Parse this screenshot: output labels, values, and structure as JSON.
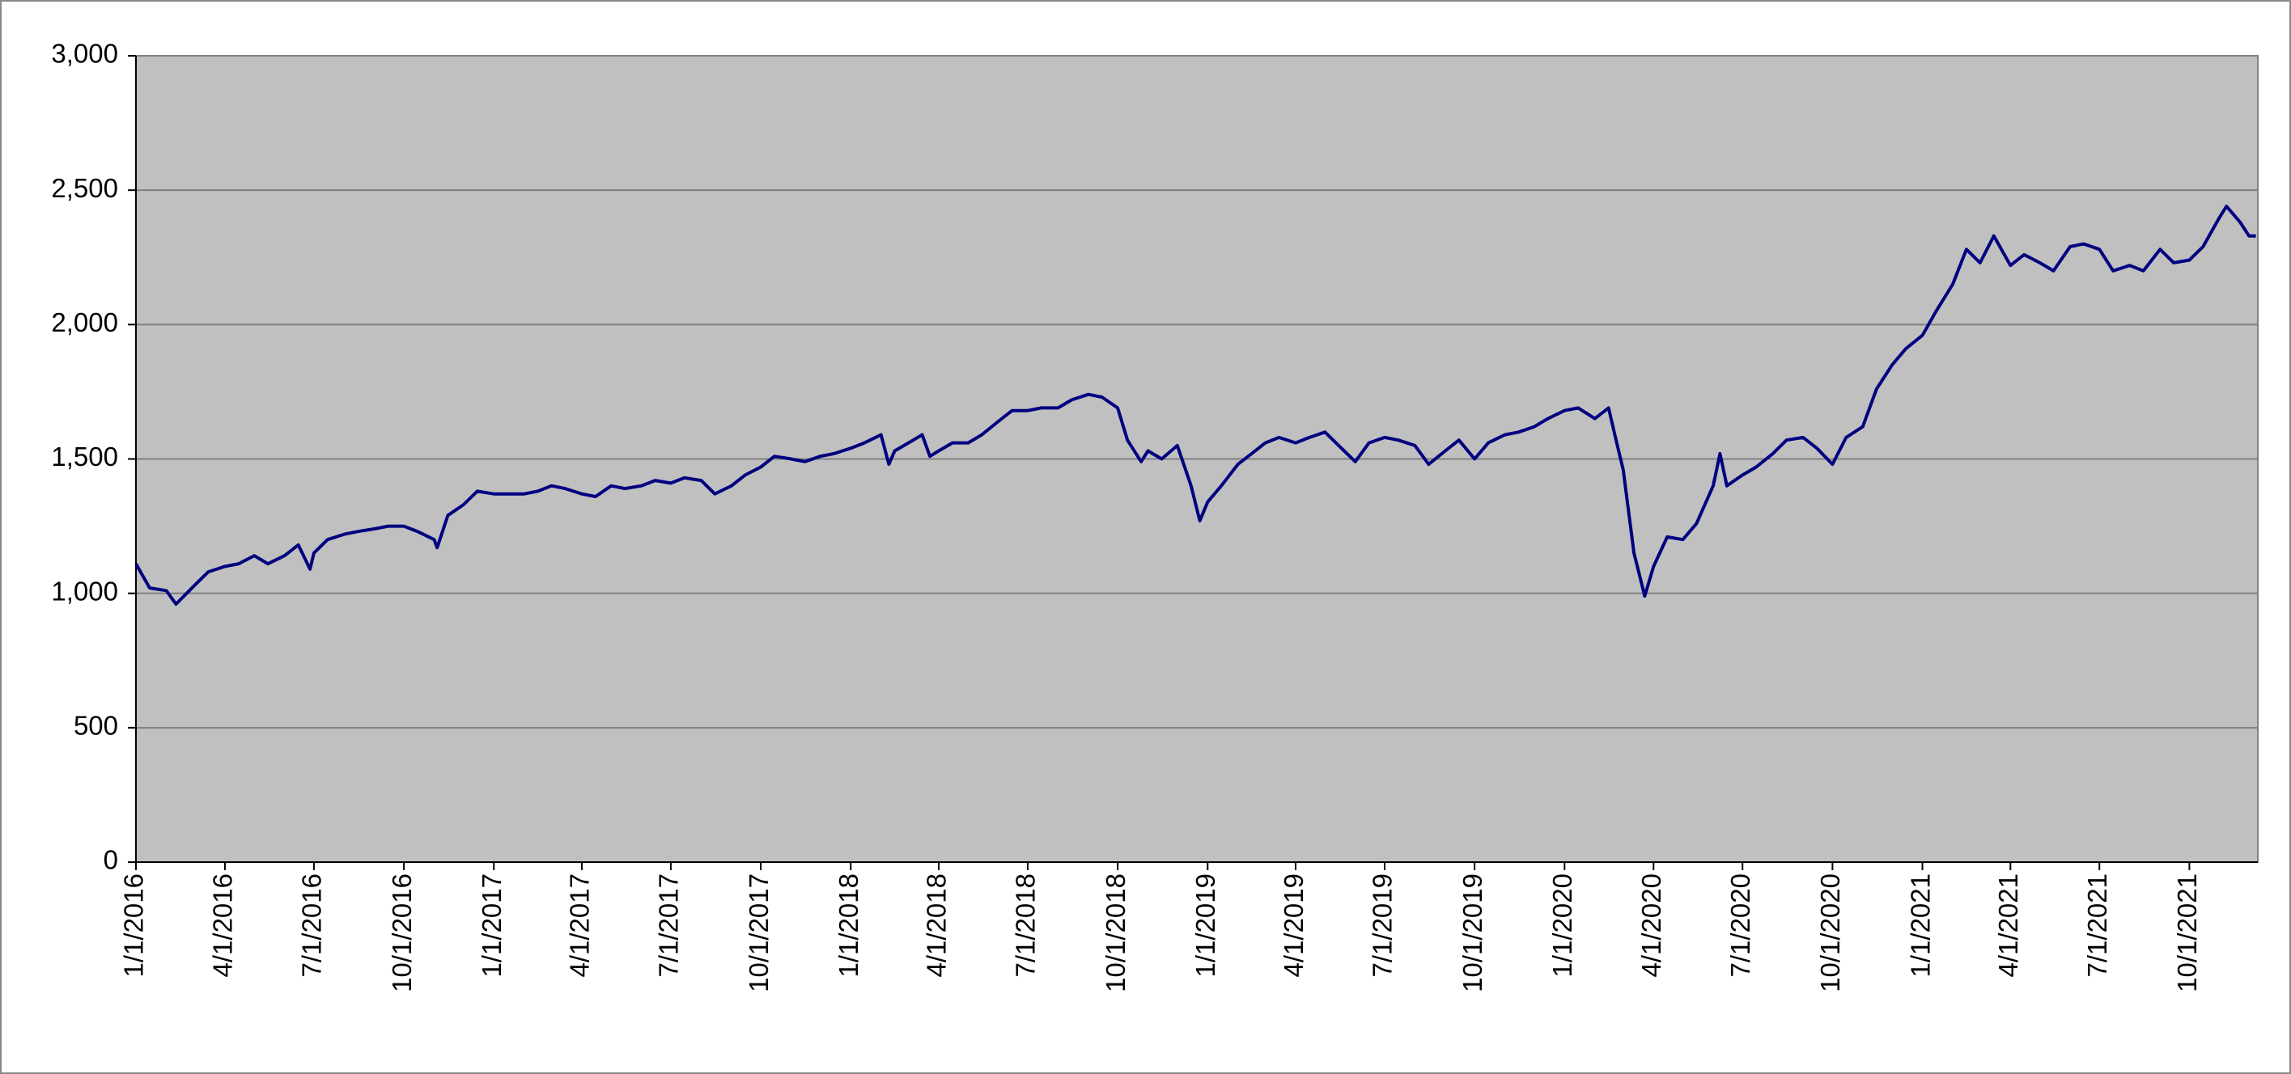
{
  "chart_data": {
    "type": "line",
    "x": [
      "1/1/2016",
      "1/15/2016",
      "2/1/2016",
      "2/11/2016",
      "3/1/2016",
      "3/15/2016",
      "4/1/2016",
      "4/15/2016",
      "5/1/2016",
      "5/15/2016",
      "6/1/2016",
      "6/15/2016",
      "6/27/2016",
      "7/1/2016",
      "7/15/2016",
      "8/1/2016",
      "8/15/2016",
      "9/1/2016",
      "9/15/2016",
      "10/1/2016",
      "10/15/2016",
      "11/1/2016",
      "11/4/2016",
      "11/15/2016",
      "12/1/2016",
      "12/15/2016",
      "1/1/2017",
      "1/15/2017",
      "2/1/2017",
      "2/15/2017",
      "3/1/2017",
      "3/15/2017",
      "4/1/2017",
      "4/15/2017",
      "5/1/2017",
      "5/15/2017",
      "6/1/2017",
      "6/15/2017",
      "7/1/2017",
      "7/15/2017",
      "8/1/2017",
      "8/15/2017",
      "9/1/2017",
      "9/15/2017",
      "10/1/2017",
      "10/15/2017",
      "11/1/2017",
      "11/15/2017",
      "12/1/2017",
      "12/15/2017",
      "1/1/2018",
      "1/15/2018",
      "2/1/2018",
      "2/9/2018",
      "2/15/2018",
      "3/1/2018",
      "3/15/2018",
      "3/23/2018",
      "4/1/2018",
      "4/15/2018",
      "5/1/2018",
      "5/15/2018",
      "6/1/2018",
      "6/15/2018",
      "7/1/2018",
      "7/15/2018",
      "8/1/2018",
      "8/15/2018",
      "9/1/2018",
      "9/15/2018",
      "10/1/2018",
      "10/11/2018",
      "10/25/2018",
      "11/1/2018",
      "11/15/2018",
      "12/1/2018",
      "12/15/2018",
      "12/24/2018",
      "1/1/2019",
      "1/15/2019",
      "2/1/2019",
      "2/15/2019",
      "3/1/2019",
      "3/15/2019",
      "4/1/2019",
      "4/15/2019",
      "5/1/2019",
      "5/15/2019",
      "6/1/2019",
      "6/15/2019",
      "7/1/2019",
      "7/15/2019",
      "8/1/2019",
      "8/15/2019",
      "9/1/2019",
      "9/15/2019",
      "10/1/2019",
      "10/15/2019",
      "11/1/2019",
      "11/15/2019",
      "12/1/2019",
      "12/15/2019",
      "1/1/2020",
      "1/15/2020",
      "2/1/2020",
      "2/15/2020",
      "2/24/2020",
      "3/1/2020",
      "3/12/2020",
      "3/23/2020",
      "4/1/2020",
      "4/15/2020",
      "5/1/2020",
      "5/15/2020",
      "6/1/2020",
      "6/8/2020",
      "6/15/2020",
      "7/1/2020",
      "7/15/2020",
      "8/1/2020",
      "8/15/2020",
      "9/1/2020",
      "9/15/2020",
      "10/1/2020",
      "10/15/2020",
      "11/1/2020",
      "11/15/2020",
      "12/1/2020",
      "12/15/2020",
      "1/1/2021",
      "1/15/2021",
      "2/1/2021",
      "2/15/2021",
      "3/1/2021",
      "3/15/2021",
      "4/1/2021",
      "4/15/2021",
      "5/1/2021",
      "5/15/2021",
      "6/1/2021",
      "6/15/2021",
      "7/1/2021",
      "7/15/2021",
      "8/1/2021",
      "8/15/2021",
      "9/1/2021",
      "9/15/2021",
      "10/1/2021",
      "10/15/2021",
      "11/1/2021",
      "11/8/2021",
      "11/22/2021",
      "12/1/2021",
      "12/8/2021"
    ],
    "series": [
      {
        "color": "#000080",
        "values": [
          1110,
          1020,
          1010,
          960,
          1030,
          1080,
          1100,
          1110,
          1140,
          1110,
          1140,
          1180,
          1090,
          1150,
          1200,
          1220,
          1230,
          1240,
          1250,
          1250,
          1230,
          1200,
          1170,
          1290,
          1330,
          1380,
          1370,
          1370,
          1370,
          1380,
          1400,
          1390,
          1370,
          1360,
          1400,
          1390,
          1400,
          1420,
          1410,
          1430,
          1420,
          1370,
          1400,
          1440,
          1470,
          1510,
          1500,
          1490,
          1510,
          1520,
          1540,
          1560,
          1590,
          1480,
          1530,
          1560,
          1590,
          1510,
          1530,
          1560,
          1560,
          1590,
          1640,
          1680,
          1680,
          1690,
          1690,
          1720,
          1740,
          1730,
          1690,
          1570,
          1490,
          1530,
          1500,
          1550,
          1400,
          1270,
          1340,
          1400,
          1480,
          1520,
          1560,
          1580,
          1560,
          1580,
          1600,
          1550,
          1490,
          1560,
          1580,
          1570,
          1550,
          1480,
          1530,
          1570,
          1500,
          1560,
          1590,
          1600,
          1620,
          1650,
          1680,
          1690,
          1650,
          1690,
          1550,
          1460,
          1150,
          990,
          1100,
          1210,
          1200,
          1260,
          1400,
          1520,
          1400,
          1440,
          1470,
          1520,
          1570,
          1580,
          1540,
          1480,
          1580,
          1620,
          1760,
          1850,
          1910,
          1960,
          2050,
          2150,
          2280,
          2230,
          2330,
          2220,
          2260,
          2230,
          2200,
          2290,
          2300,
          2280,
          2200,
          2220,
          2200,
          2280,
          2230,
          2240,
          2290,
          2400,
          2440,
          2380,
          2330,
          2330
        ]
      }
    ],
    "xlim": [
      "1/1/2016",
      "12/10/2021"
    ],
    "xticks": [
      "1/1/2016",
      "4/1/2016",
      "7/1/2016",
      "10/1/2016",
      "1/1/2017",
      "4/1/2017",
      "7/1/2017",
      "10/1/2017",
      "1/1/2018",
      "4/1/2018",
      "7/1/2018",
      "10/1/2018",
      "1/1/2019",
      "4/1/2019",
      "7/1/2019",
      "10/1/2019",
      "1/1/2020",
      "4/1/2020",
      "7/1/2020",
      "10/1/2020",
      "1/1/2021",
      "4/1/2021",
      "7/1/2021",
      "10/1/2021"
    ],
    "ylim": [
      0,
      3000
    ],
    "yticks": [
      0,
      500,
      {
        "value": 1000,
        "label": "1,000"
      },
      {
        "value": 1500,
        "label": "1,500"
      },
      {
        "value": 2000,
        "label": "2,000"
      },
      {
        "value": 2500,
        "label": "2,500"
      },
      {
        "value": 3000,
        "label": "3,000"
      }
    ],
    "grid": true
  }
}
